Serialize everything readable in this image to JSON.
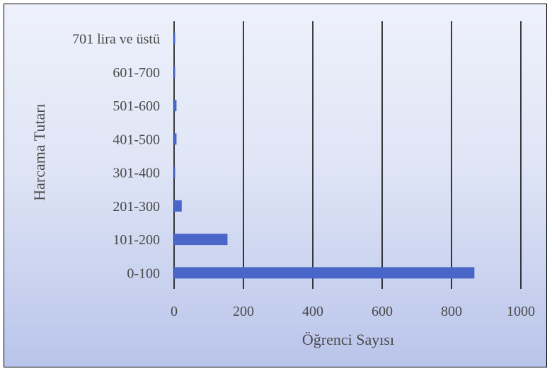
{
  "chart_data": {
    "type": "bar",
    "orientation": "horizontal",
    "categories": [
      "0-100",
      "101-200",
      "201-300",
      "301-400",
      "401-500",
      "501-600",
      "601-700",
      "701 lira ve üstü"
    ],
    "values": [
      866,
      154,
      22,
      3,
      7,
      7,
      3,
      3
    ],
    "xlabel": "Öğrenci Sayısı",
    "ylabel": "Harcama Tutarı",
    "xlim": [
      0,
      1000
    ],
    "xticks": [
      0,
      200,
      400,
      600,
      800,
      1000
    ],
    "grid": "vertical",
    "bar_color": "#4a66c9",
    "grid_color": "#000000"
  }
}
